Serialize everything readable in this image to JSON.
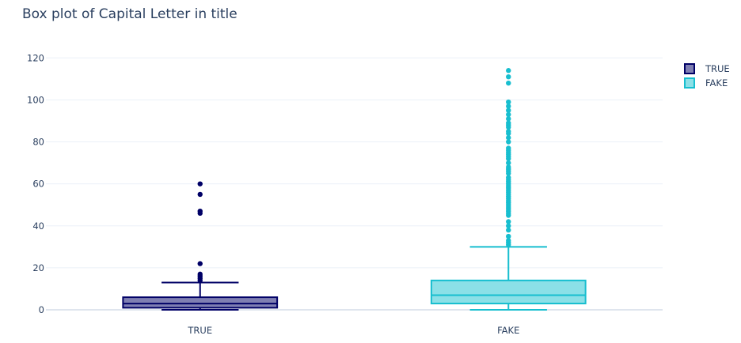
{
  "chart_data": {
    "type": "box",
    "title": "Box plot of Capital Letter in title",
    "xlabel": "",
    "ylabel": "",
    "categories": [
      "TRUE",
      "FAKE"
    ],
    "ylim": [
      -3,
      125
    ],
    "y_ticks": [
      0,
      20,
      40,
      60,
      80,
      100,
      120
    ],
    "grid": true,
    "legend_position": "top-right",
    "series": [
      {
        "name": "TRUE",
        "category": "TRUE",
        "color": "#000066",
        "fill": "#7f7fb2",
        "whisker_low": 0,
        "q1": 1,
        "median": 3,
        "q3": 6,
        "whisker_high": 13,
        "outliers": [
          14,
          15,
          16,
          17,
          22,
          46,
          47,
          55,
          60
        ]
      },
      {
        "name": "FAKE",
        "category": "FAKE",
        "color": "#17becf",
        "fill": "#8be0e7",
        "whisker_low": 0,
        "q1": 3,
        "median": 7,
        "q3": 14,
        "whisker_high": 30,
        "outliers": [
          31,
          32,
          33,
          35,
          38,
          40,
          42,
          45,
          46,
          47,
          48,
          49,
          50,
          51,
          52,
          53,
          54,
          55,
          56,
          57,
          58,
          59,
          60,
          61,
          62,
          63,
          65,
          66,
          67,
          68,
          70,
          72,
          73,
          74,
          75,
          76,
          77,
          80,
          82,
          84,
          85,
          87,
          88,
          89,
          91,
          93,
          95,
          97,
          99,
          108,
          111,
          114
        ]
      }
    ]
  }
}
